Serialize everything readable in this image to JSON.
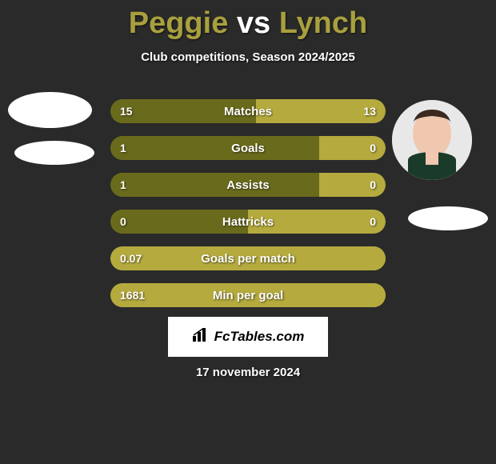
{
  "title": {
    "player1": "Peggie",
    "vs": "vs",
    "player2": "Lynch",
    "color_player1": "#a8a03d",
    "color_vs": "#ffffff",
    "color_player2": "#a8a03d"
  },
  "subtitle": "Club competitions, Season 2024/2025",
  "colors": {
    "background": "#2a2a2a",
    "bar_dark": "#6a6a1c",
    "bar_light": "#b5aa3e",
    "text": "#ffffff"
  },
  "bars": [
    {
      "label": "Matches",
      "left": "15",
      "right": "13",
      "left_pct": 53,
      "right_pct": 47,
      "left_color": "#6a6a1c",
      "right_color": "#b5aa3e"
    },
    {
      "label": "Goals",
      "left": "1",
      "right": "0",
      "left_pct": 76,
      "right_pct": 24,
      "left_color": "#6a6a1c",
      "right_color": "#b5aa3e"
    },
    {
      "label": "Assists",
      "left": "1",
      "right": "0",
      "left_pct": 76,
      "right_pct": 24,
      "left_color": "#6a6a1c",
      "right_color": "#b5aa3e"
    },
    {
      "label": "Hattricks",
      "left": "0",
      "right": "0",
      "left_pct": 50,
      "right_pct": 50,
      "left_color": "#6a6a1c",
      "right_color": "#b5aa3e"
    },
    {
      "label": "Goals per match",
      "left": "0.07",
      "right": "",
      "left_pct": 100,
      "right_pct": 0,
      "left_color": "#b5aa3e",
      "right_color": "#b5aa3e"
    },
    {
      "label": "Min per goal",
      "left": "1681",
      "right": "",
      "left_pct": 100,
      "right_pct": 0,
      "left_color": "#b5aa3e",
      "right_color": "#b5aa3e"
    }
  ],
  "logo": {
    "icon": "📊",
    "text": "FcTables.com"
  },
  "date": "17 november 2024",
  "avatar_right": {
    "skin": "#f0c8b0",
    "hair": "#3a2a20",
    "shirt": "#1a3a2a"
  }
}
